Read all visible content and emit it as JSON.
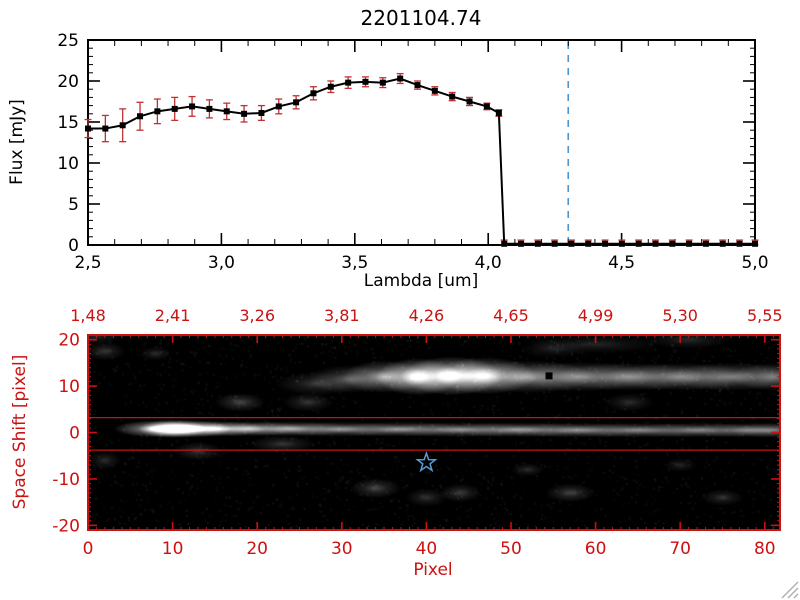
{
  "title": "2201104.74",
  "colors": {
    "axis": "#000000",
    "red": "#cc1111",
    "blue_dashed": "#4f94cd",
    "error": "#c03030",
    "star": "#5b9bd5",
    "grip": "#b0b0b0"
  },
  "chart_data": [
    {
      "type": "line",
      "title": "2201104.74",
      "xlabel": "Lambda [um]",
      "ylabel": "Flux [mJy]",
      "xlim": [
        2.5,
        5.0
      ],
      "ylim": [
        0,
        25
      ],
      "grid": false,
      "xticks": {
        "values": [
          2.5,
          3.0,
          3.5,
          4.0,
          4.5,
          5.0
        ],
        "labels": [
          "2,5",
          "3,0",
          "3,5",
          "4,0",
          "4,5",
          "5,0"
        ]
      },
      "yticks": {
        "values": [
          0,
          5,
          10,
          15,
          20,
          25
        ],
        "labels": [
          "0",
          "5",
          "10",
          "15",
          "20",
          "25"
        ]
      },
      "vline": {
        "x": 4.3,
        "style": "dashed"
      },
      "series": [
        {
          "name": "spectrum",
          "marker": "square",
          "color": "#000000",
          "points": [
            [
              2.5,
              14.2,
              1.1
            ],
            [
              2.565,
              14.2,
              1.6
            ],
            [
              2.63,
              14.6,
              2.0
            ],
            [
              2.695,
              15.7,
              1.7
            ],
            [
              2.76,
              16.3,
              1.5
            ],
            [
              2.825,
              16.6,
              1.4
            ],
            [
              2.89,
              16.9,
              1.2
            ],
            [
              2.955,
              16.6,
              1.1
            ],
            [
              3.02,
              16.3,
              1.0
            ],
            [
              3.085,
              16.0,
              1.0
            ],
            [
              3.15,
              16.1,
              0.9
            ],
            [
              3.215,
              16.9,
              0.9
            ],
            [
              3.28,
              17.4,
              0.8
            ],
            [
              3.345,
              18.5,
              0.8
            ],
            [
              3.41,
              19.3,
              0.7
            ],
            [
              3.475,
              19.8,
              0.7
            ],
            [
              3.54,
              19.9,
              0.6
            ],
            [
              3.605,
              19.8,
              0.6
            ],
            [
              3.67,
              20.3,
              0.6
            ],
            [
              3.735,
              19.5,
              0.5
            ],
            [
              3.8,
              18.8,
              0.5
            ],
            [
              3.865,
              18.1,
              0.5
            ],
            [
              3.93,
              17.5,
              0.5
            ],
            [
              3.995,
              16.9,
              0.4
            ],
            [
              4.04,
              16.1,
              0.4
            ],
            [
              4.06,
              0.15,
              0.45
            ],
            [
              4.123,
              0.15,
              0.45
            ],
            [
              4.186,
              0.15,
              0.45
            ],
            [
              4.249,
              0.15,
              0.45
            ],
            [
              4.312,
              0.15,
              0.45
            ],
            [
              4.375,
              0.15,
              0.45
            ],
            [
              4.438,
              0.15,
              0.45
            ],
            [
              4.501,
              0.15,
              0.45
            ],
            [
              4.564,
              0.15,
              0.45
            ],
            [
              4.627,
              0.15,
              0.45
            ],
            [
              4.69,
              0.15,
              0.45
            ],
            [
              4.753,
              0.15,
              0.45
            ],
            [
              4.816,
              0.15,
              0.45
            ],
            [
              4.879,
              0.15,
              0.45
            ],
            [
              4.942,
              0.15,
              0.45
            ],
            [
              5.0,
              0.15,
              0.45
            ]
          ]
        }
      ]
    },
    {
      "type": "heatmap",
      "xlabel": "Pixel",
      "ylabel": "Space Shift [pixel]",
      "xlim": [
        0,
        81.8
      ],
      "ylim": [
        -21,
        21
      ],
      "xticks": {
        "values": [
          0,
          10,
          20,
          30,
          40,
          50,
          60,
          70,
          80
        ],
        "labels": [
          "0",
          "10",
          "20",
          "30",
          "40",
          "50",
          "60",
          "70",
          "80"
        ]
      },
      "yticks": {
        "values": [
          20,
          10,
          0,
          -10,
          -20
        ],
        "labels": [
          "20",
          "10",
          "0",
          "-10",
          "-20"
        ]
      },
      "top_axis": {
        "tick_values": [
          0,
          10,
          20,
          30,
          40,
          50,
          60,
          70,
          80
        ],
        "labels": [
          "1,48",
          "2,41",
          "3,26",
          "3,81",
          "4,26",
          "4,65",
          "4,99",
          "5,30",
          "5,55"
        ]
      },
      "aperture_lines_y": [
        3.2,
        -3.8
      ],
      "markers": {
        "square": {
          "x": 54.5,
          "y": 12.2
        },
        "star": {
          "x": 40,
          "y": -6.5
        }
      },
      "image": {
        "background": "#000000",
        "blobs": [
          [
            8,
            0.8,
            5,
            1.8,
            0.85
          ],
          [
            10,
            0.8,
            4,
            2.0,
            1.0
          ],
          [
            12,
            0.8,
            5,
            1.9,
            0.95
          ],
          [
            15,
            0.8,
            6,
            1.7,
            0.7
          ],
          [
            19,
            0.8,
            7,
            1.6,
            0.55
          ],
          [
            24,
            0.8,
            8,
            1.6,
            0.5
          ],
          [
            30,
            0.7,
            9,
            1.6,
            0.45
          ],
          [
            37,
            0.7,
            9,
            1.6,
            0.45
          ],
          [
            44,
            0.6,
            10,
            1.6,
            0.42
          ],
          [
            51,
            0.6,
            10,
            1.6,
            0.45
          ],
          [
            58,
            0.5,
            10,
            1.6,
            0.4
          ],
          [
            65,
            0.5,
            10,
            1.6,
            0.4
          ],
          [
            72,
            0.5,
            9,
            1.6,
            0.38
          ],
          [
            78,
            0.5,
            8,
            1.6,
            0.37
          ],
          [
            81,
            0.5,
            5,
            1.6,
            0.35
          ],
          [
            27,
            10.5,
            5,
            2.5,
            0.22
          ],
          [
            31,
            11.5,
            5,
            3,
            0.35
          ],
          [
            35,
            12,
            5,
            3.5,
            0.6
          ],
          [
            39,
            12,
            5,
            4,
            0.9
          ],
          [
            43,
            12.2,
            6,
            4.2,
            0.95
          ],
          [
            47,
            12.2,
            6,
            4,
            0.75
          ],
          [
            52,
            12,
            8,
            3.5,
            0.5
          ],
          [
            58,
            12,
            9,
            3.2,
            0.42
          ],
          [
            64,
            12,
            9,
            3,
            0.4
          ],
          [
            70,
            12,
            9,
            3,
            0.4
          ],
          [
            76,
            12,
            8,
            3,
            0.42
          ],
          [
            81,
            12,
            5,
            3,
            0.4
          ],
          [
            2,
            17.5,
            2.5,
            2,
            0.22
          ],
          [
            8,
            17,
            2,
            1.5,
            0.18
          ],
          [
            1,
            21,
            3,
            2,
            0.2
          ],
          [
            18,
            6.5,
            3,
            2,
            0.28
          ],
          [
            26,
            6.5,
            3,
            2,
            0.22
          ],
          [
            64,
            6.5,
            3,
            2,
            0.18
          ],
          [
            13,
            -4,
            3,
            2,
            0.22
          ],
          [
            2,
            -6,
            2,
            2,
            0.18
          ],
          [
            23,
            -2.5,
            4,
            1.8,
            0.22
          ],
          [
            34,
            -12,
            3,
            2.2,
            0.28
          ],
          [
            40,
            -14,
            2.5,
            2,
            0.2
          ],
          [
            44,
            -13,
            2.5,
            2,
            0.24
          ],
          [
            57,
            -13,
            3,
            2,
            0.26
          ],
          [
            52,
            -8,
            2,
            1.5,
            0.18
          ],
          [
            75,
            -14,
            2.5,
            1.8,
            0.2
          ],
          [
            70,
            -7,
            2,
            1.5,
            0.15
          ],
          [
            60,
            19,
            8,
            2,
            0.15
          ],
          [
            71,
            20,
            5,
            2,
            0.17
          ],
          [
            55,
            18,
            4,
            2,
            0.13
          ]
        ]
      }
    }
  ]
}
